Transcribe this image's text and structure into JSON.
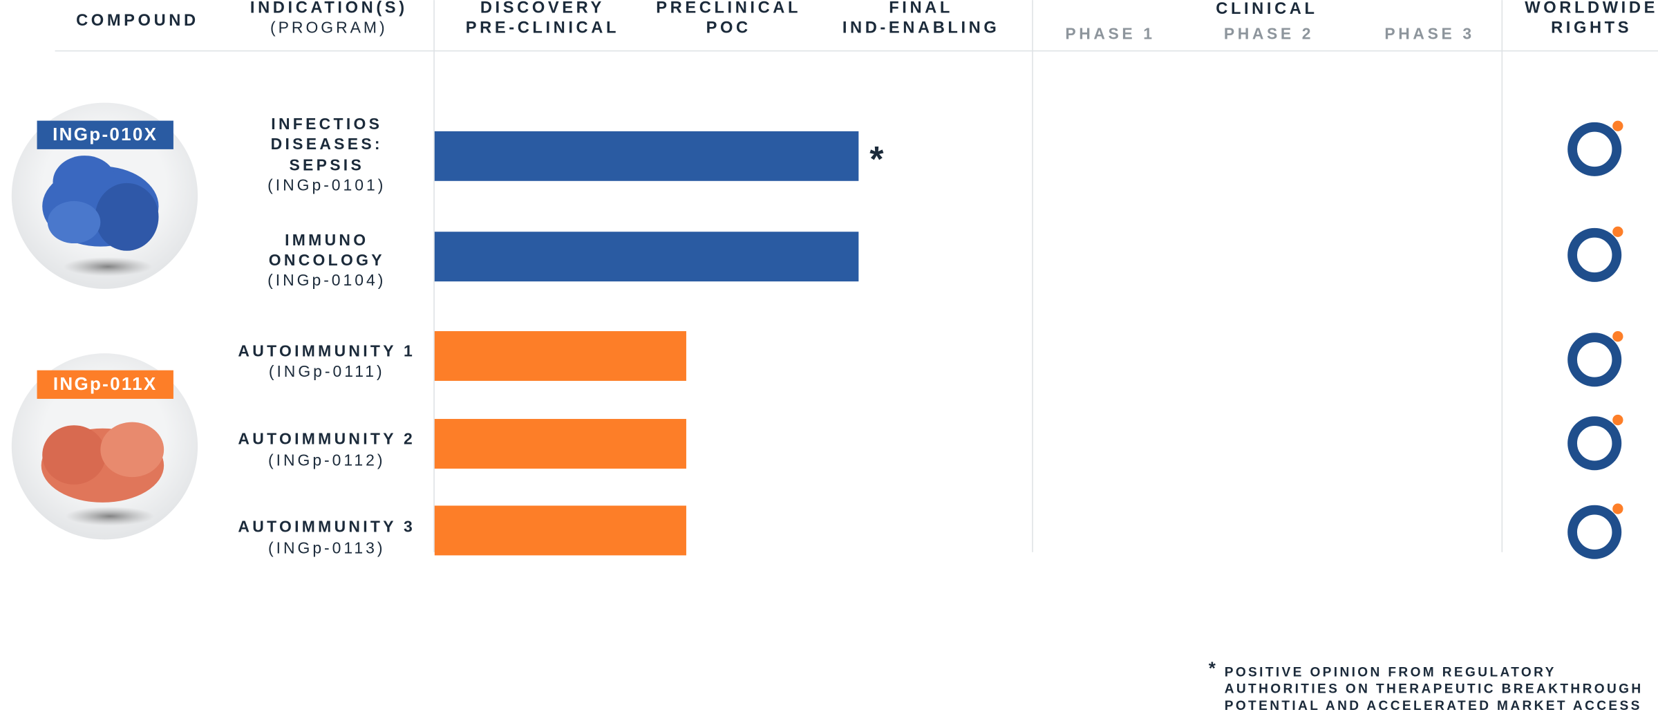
{
  "header": {
    "compound": "COMPOUND",
    "indication": "INDICATION(S)",
    "program": "(PROGRAM)",
    "stages": [
      [
        "DISCOVERY",
        "PRE-CLINICAL"
      ],
      [
        "PRECLINICAL",
        "POC"
      ],
      [
        "FINAL",
        "IND-ENABLING"
      ]
    ],
    "clinical": "CLINICAL",
    "phases": [
      "PHASE 1",
      "PHASE 2",
      "PHASE 3"
    ],
    "rights": [
      "WORLDWIDE",
      "RIGHTS"
    ]
  },
  "compounds": [
    {
      "label": "INGp-010X",
      "rows": [
        {
          "indication": [
            "INFECTIOS",
            "DISEASES:",
            "SEPSIS"
          ],
          "program": "(INGp-0101)",
          "marker": "*"
        },
        {
          "indication": [
            "IMMUNO",
            "ONCOLOGY"
          ],
          "program": "(INGp-0104)"
        }
      ]
    },
    {
      "label": "INGp-011X",
      "rows": [
        {
          "indication": [
            "AUTOIMMUNITY 1"
          ],
          "program": "(INGp-0111)"
        },
        {
          "indication": [
            "AUTOIMMUNITY 2"
          ],
          "program": "(INGp-0112)"
        },
        {
          "indication": [
            "AUTOIMMUNITY 3"
          ],
          "program": "(INGp-0113)"
        }
      ]
    }
  ],
  "footnote": {
    "mark": "*",
    "lines": [
      "POSITIVE OPINION FROM REGULATORY",
      "AUTHORITIES ON THERAPEUTIC BREAKTHROUGH",
      "POTENTIAL AND ACCELERATED MARKET ACCESS"
    ]
  }
}
